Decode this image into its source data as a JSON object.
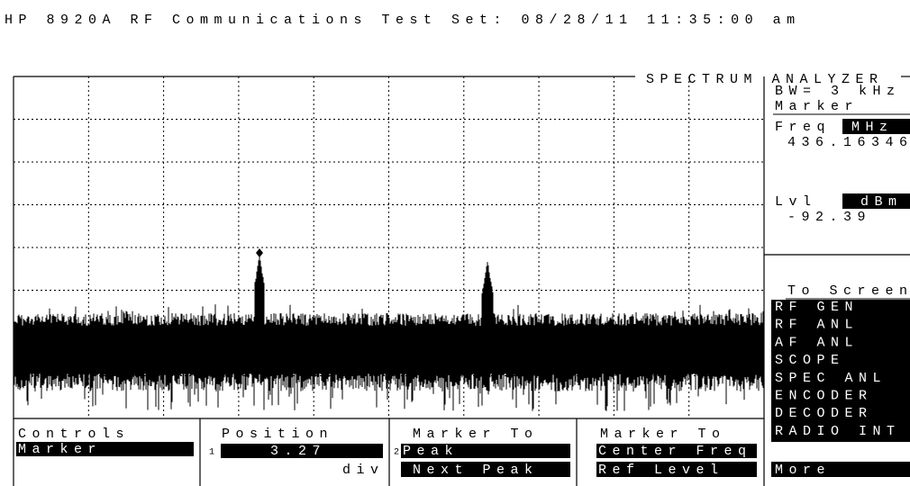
{
  "header": {
    "title": "HP 8920A RF Communications Test Set: 08/28/11 11:35:00 am"
  },
  "display": {
    "label": "SPECTRUM ANALYZER"
  },
  "side": {
    "bw": "BW= 3 kHz",
    "marker": "Marker",
    "freq_label": "Freq",
    "freq_unit": "MHz",
    "freq_value": "436.16346",
    "lvl_label": "Lvl",
    "lvl_unit": "dBm",
    "lvl_value": "-92.39",
    "to_screen": "To Screen",
    "screens": [
      "RF GEN",
      "RF ANL",
      "AF ANL",
      "SCOPE",
      "SPEC ANL",
      "ENCODER",
      "DECODER",
      "RADIO INT"
    ],
    "more": "More"
  },
  "softkeys": {
    "controls": {
      "title": "Controls",
      "value": "Marker"
    },
    "position": {
      "title": "Position",
      "index": "1",
      "value": "3.27",
      "unit": "div"
    },
    "marker_to_peak": {
      "title": "Marker To",
      "index": "2",
      "items": [
        "Peak",
        "Next Peak"
      ]
    },
    "marker_to_freq": {
      "title": "Marker To",
      "items": [
        "Center Freq",
        "Ref Level"
      ]
    }
  }
}
